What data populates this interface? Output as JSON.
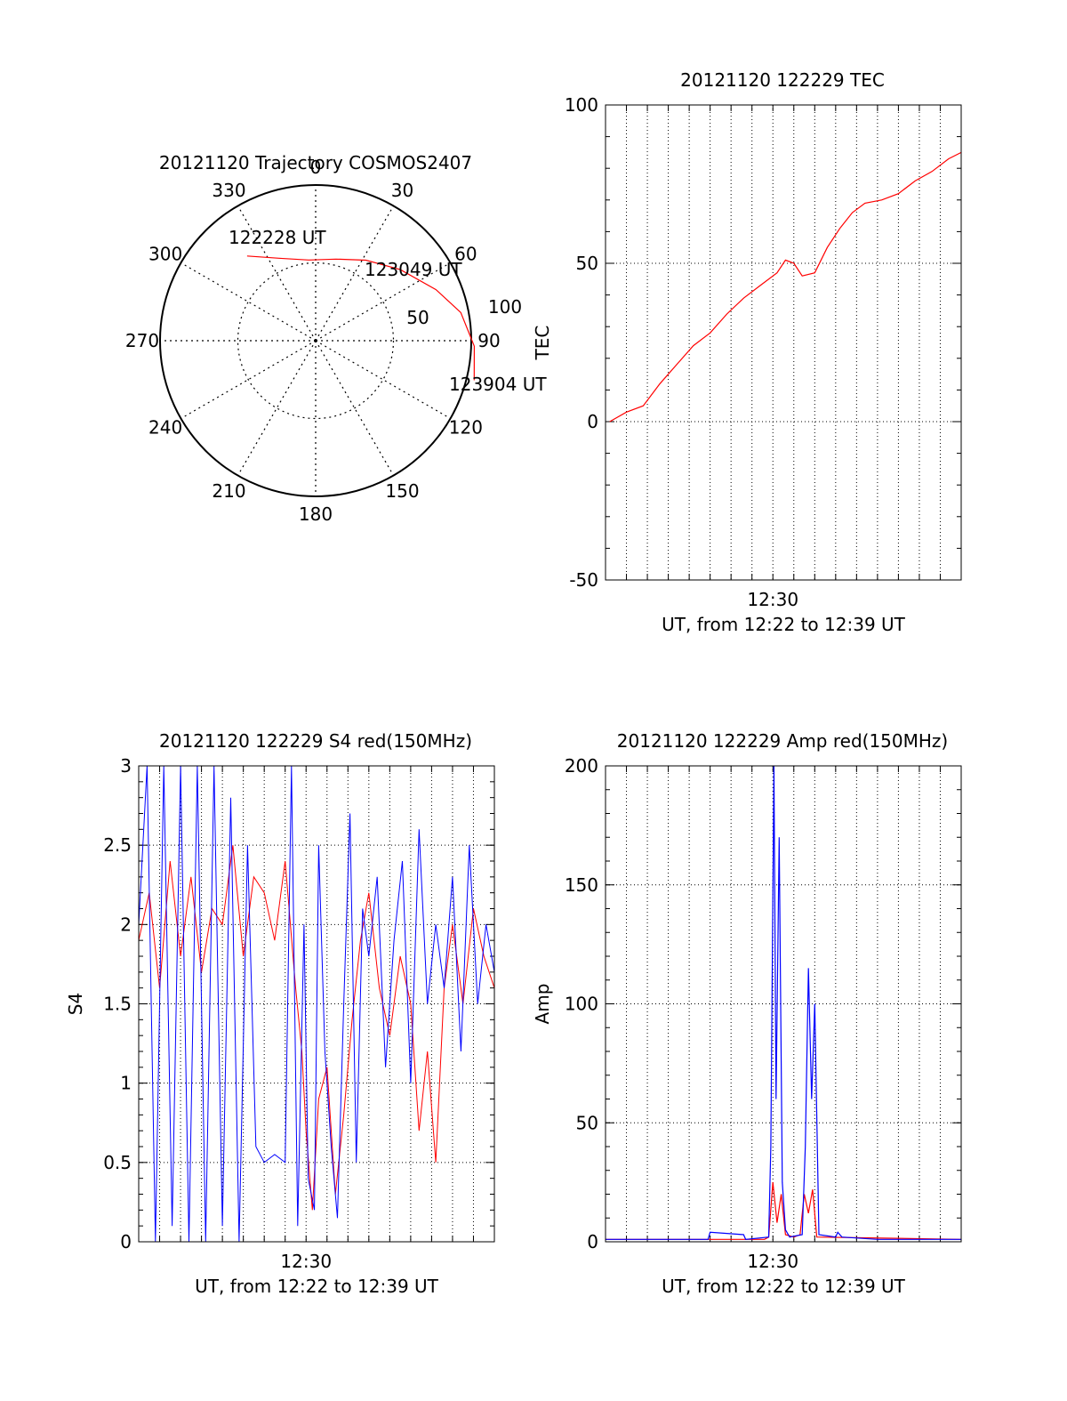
{
  "colors": {
    "background": "#ffffff",
    "axis": "#000000",
    "grid": "#000000",
    "red": "#ff0000",
    "blue": "#0000ff"
  },
  "chart_data": [
    {
      "type": "polar",
      "title": "20121120 Trajectory COSMOS2407",
      "angle_labels": [
        "0",
        "30",
        "60",
        "90",
        "120",
        "150",
        "180",
        "210",
        "240",
        "270",
        "300",
        "330"
      ],
      "radial_labels": [
        "50",
        "100"
      ],
      "series": [
        {
          "color": "#ff0000",
          "points": [
            {
              "azimuth": 321,
              "zenith": 70
            },
            {
              "azimuth": 336,
              "zenith": 58
            },
            {
              "azimuth": 355,
              "zenith": 52
            },
            {
              "azimuth": 14,
              "zenith": 54
            },
            {
              "azimuth": 32,
              "zenith": 61
            },
            {
              "azimuth": 50,
              "zenith": 71
            },
            {
              "azimuth": 67,
              "zenith": 84
            },
            {
              "azimuth": 79,
              "zenith": 95
            },
            {
              "azimuth": 92,
              "zenith": 102
            },
            {
              "azimuth": 104,
              "zenith": 105
            }
          ]
        }
      ],
      "annotations": [
        "122228 UT",
        "123049 UT",
        "123904 UT"
      ]
    },
    {
      "type": "line",
      "title": "20121120 122229 TEC",
      "xlabel": "UT, from 12:22 to 12:39 UT",
      "ylabel": "TEC",
      "xtick_label": "12:30",
      "xlim": [
        0,
        17
      ],
      "ylim": [
        -50,
        100
      ],
      "yticks": [
        -50,
        0,
        50,
        100
      ],
      "grid": true,
      "series": [
        {
          "color": "#ff0000",
          "x": [
            0.2,
            1.0,
            1.8,
            2.6,
            3.4,
            4.2,
            5.0,
            5.8,
            6.6,
            7.4,
            8.2,
            8.6,
            9.0,
            9.4,
            10.0,
            10.6,
            11.2,
            11.8,
            12.4,
            13.2,
            14.0,
            14.8,
            15.6,
            16.4,
            17.0
          ],
          "y": [
            0,
            3,
            5,
            12,
            18,
            24,
            28,
            34,
            39,
            43,
            47,
            51,
            50,
            46,
            47,
            55,
            61,
            66,
            69,
            70,
            72,
            76,
            79,
            83,
            85
          ]
        }
      ]
    },
    {
      "type": "line",
      "title": "20121120 122229 S4 red(150MHz)",
      "xlabel": "UT, from 12:22 to 12:39 UT",
      "ylabel": "S4",
      "xtick_label": "12:30",
      "xlim": [
        0,
        17
      ],
      "ylim": [
        0,
        3
      ],
      "yticks": [
        "0",
        "0.5",
        "1",
        "1.5",
        "2",
        "2.5",
        "3"
      ],
      "yticks_values": [
        0,
        0.5,
        1,
        1.5,
        2,
        2.5,
        3
      ],
      "grid": true,
      "series": [
        {
          "color": "#ff0000",
          "x": [
            0.0,
            0.5,
            1.0,
            1.5,
            2.0,
            2.5,
            3.0,
            3.5,
            4.0,
            4.5,
            5.0,
            5.5,
            6.0,
            6.5,
            7.0,
            7.5,
            7.8,
            8.0,
            8.3,
            8.6,
            9.0,
            9.4,
            9.8,
            10.2,
            10.6,
            11.0,
            11.5,
            12.0,
            12.5,
            13.0,
            13.4,
            13.8,
            14.2,
            14.6,
            15.0,
            15.5,
            16.0,
            16.5,
            17.0
          ],
          "y": [
            1.9,
            2.2,
            1.6,
            2.4,
            1.8,
            2.3,
            1.7,
            2.1,
            2.0,
            2.5,
            1.8,
            2.3,
            2.2,
            1.9,
            2.4,
            1.6,
            1.2,
            0.7,
            0.2,
            0.9,
            1.1,
            0.3,
            0.8,
            1.4,
            1.9,
            2.2,
            1.6,
            1.3,
            1.8,
            1.5,
            0.7,
            1.2,
            0.5,
            1.6,
            2.0,
            1.5,
            2.1,
            1.8,
            1.6
          ]
        },
        {
          "color": "#0000ff",
          "x": [
            0.0,
            0.4,
            0.8,
            1.2,
            1.6,
            2.0,
            2.4,
            2.8,
            3.2,
            3.6,
            4.0,
            4.4,
            4.8,
            5.2,
            5.6,
            6.0,
            6.5,
            7.0,
            7.3,
            7.6,
            7.9,
            8.1,
            8.4,
            8.6,
            8.9,
            9.2,
            9.5,
            9.8,
            10.1,
            10.4,
            10.7,
            11.0,
            11.4,
            11.8,
            12.2,
            12.6,
            13.0,
            13.4,
            13.8,
            14.2,
            14.6,
            15.0,
            15.4,
            15.8,
            16.2,
            16.6,
            17.0
          ],
          "y": [
            2.0,
            3.0,
            0.0,
            3.0,
            0.1,
            3.0,
            0.0,
            3.0,
            0.0,
            3.0,
            0.1,
            2.8,
            0.0,
            2.5,
            0.6,
            0.5,
            0.55,
            0.5,
            3.0,
            0.1,
            2.0,
            0.4,
            0.2,
            2.5,
            1.2,
            0.6,
            0.15,
            1.5,
            2.7,
            0.5,
            2.1,
            1.8,
            2.3,
            1.1,
            1.9,
            2.4,
            1.0,
            2.6,
            1.5,
            2.0,
            1.6,
            2.3,
            1.2,
            2.5,
            1.5,
            2.0,
            1.7
          ]
        }
      ]
    },
    {
      "type": "line",
      "title": "20121120 122229 Amp red(150MHz)",
      "xlabel": "UT, from 12:22 to 12:39 UT",
      "ylabel": "Amp",
      "xtick_label": "12:30",
      "xlim": [
        0,
        17
      ],
      "ylim": [
        0,
        200
      ],
      "yticks": [
        0,
        50,
        100,
        150,
        200
      ],
      "grid": true,
      "series": [
        {
          "color": "#ff0000",
          "x": [
            0,
            7.6,
            7.8,
            8.0,
            8.2,
            8.4,
            8.6,
            9.0,
            9.3,
            9.5,
            9.7,
            9.9,
            10.1,
            17
          ],
          "y": [
            1,
            1,
            2,
            25,
            8,
            20,
            3,
            2,
            3,
            20,
            12,
            22,
            2,
            1
          ]
        },
        {
          "color": "#0000ff",
          "x": [
            0,
            4.9,
            5.0,
            6.6,
            6.7,
            7.8,
            7.9,
            8.05,
            8.15,
            8.3,
            8.45,
            8.6,
            8.8,
            9.4,
            9.55,
            9.7,
            9.85,
            10.0,
            10.2,
            11.0,
            11.1,
            11.3,
            13.0,
            17
          ],
          "y": [
            1,
            1,
            4,
            3,
            1,
            2,
            40,
            200,
            60,
            170,
            25,
            5,
            2,
            3,
            40,
            115,
            60,
            100,
            3,
            2,
            4,
            2,
            1,
            1
          ]
        }
      ]
    }
  ]
}
